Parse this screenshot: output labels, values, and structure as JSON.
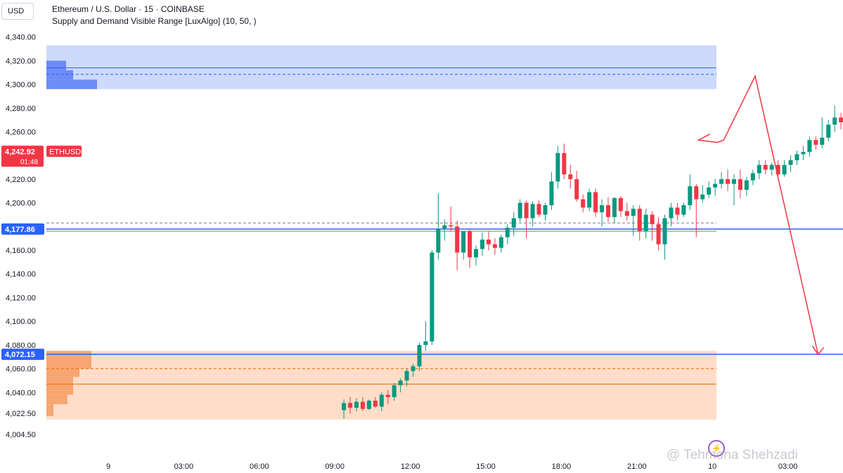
{
  "header": {
    "currency": "USD",
    "symbol_line": "Ethereum / U.S. Dollar · 15 · COINBASE",
    "indicator_line": "Supply and Demand Visible Range [LuxAlgo] (10, 50, )"
  },
  "watermark": {
    "text": "@ Tehmona Shehzadi"
  },
  "chart_data": {
    "type": "candlestick",
    "symbol": "ETHUSD",
    "interval": "15",
    "exchange": "COINBASE",
    "ylim": [
      3995,
      4346
    ],
    "y_ticks": [
      "4,340.00",
      "4,320.00",
      "4,300.00",
      "4,280.00",
      "4,260.00",
      "4,240.00",
      "4,220.00",
      "4,200.00",
      "4,180.00",
      "4,160.00",
      "4,140.00",
      "4,120.00",
      "4,100.00",
      "4,080.00",
      "4,060.00",
      "4,040.00",
      "4,022.50",
      "4,004.50"
    ],
    "x_ticks": [
      {
        "label": "9",
        "hour": 0
      },
      {
        "label": "03:00",
        "hour": 3
      },
      {
        "label": "06:00",
        "hour": 6
      },
      {
        "label": "09:00",
        "hour": 9
      },
      {
        "label": "12:00",
        "hour": 12
      },
      {
        "label": "15:00",
        "hour": 15
      },
      {
        "label": "18:00",
        "hour": 18
      },
      {
        "label": "21:00",
        "hour": 21
      },
      {
        "label": "10",
        "hour": 24
      },
      {
        "label": "03:00",
        "hour": 27
      }
    ],
    "last_price": {
      "symbol_label": "ETHUSD",
      "value": "4,242.92",
      "countdown": "01:48",
      "price": 4242.92
    },
    "levels": [
      {
        "label": "4,177.86",
        "price": 4177.86
      },
      {
        "label": "4,072.15",
        "price": 4072.15
      }
    ],
    "zones": {
      "supply": {
        "top": 4333,
        "bottom": 4296,
        "avg": 4314,
        "mid": 4308.5,
        "color": "#2962ff"
      },
      "demand": {
        "top": 4075,
        "bottom": 4017,
        "avg": 4047,
        "mid": 4060,
        "equilibrium": [
          4183,
          4176
        ],
        "color": "#ff9a57"
      }
    },
    "forecast_path": [
      {
        "hour": 23.9,
        "price": 4258
      },
      {
        "hour": 23.45,
        "price": 4253
      },
      {
        "hour": 24.2,
        "price": 4251
      },
      {
        "hour": 24.45,
        "price": 4253
      },
      {
        "hour": 25.7,
        "price": 4307
      },
      {
        "hour": 28.2,
        "price": 4072
      }
    ],
    "candles": [
      {
        "o": 4025,
        "h": 4034,
        "l": 4018,
        "c": 4031
      },
      {
        "o": 4031,
        "h": 4036,
        "l": 4022,
        "c": 4027
      },
      {
        "o": 4027,
        "h": 4035,
        "l": 4024,
        "c": 4032
      },
      {
        "o": 4032,
        "h": 4036,
        "l": 4024,
        "c": 4026
      },
      {
        "o": 4026,
        "h": 4034,
        "l": 4025,
        "c": 4033
      },
      {
        "o": 4033,
        "h": 4036,
        "l": 4027,
        "c": 4028
      },
      {
        "o": 4028,
        "h": 4040,
        "l": 4024,
        "c": 4038
      },
      {
        "o": 4038,
        "h": 4042,
        "l": 4030,
        "c": 4036
      },
      {
        "o": 4036,
        "h": 4048,
        "l": 4033,
        "c": 4046
      },
      {
        "o": 4046,
        "h": 4052,
        "l": 4040,
        "c": 4050
      },
      {
        "o": 4050,
        "h": 4060,
        "l": 4045,
        "c": 4058
      },
      {
        "o": 4058,
        "h": 4064,
        "l": 4053,
        "c": 4062
      },
      {
        "o": 4062,
        "h": 4082,
        "l": 4058,
        "c": 4080
      },
      {
        "o": 4080,
        "h": 4100,
        "l": 4075,
        "c": 4083
      },
      {
        "o": 4083,
        "h": 4160,
        "l": 4080,
        "c": 4158
      },
      {
        "o": 4158,
        "h": 4208,
        "l": 4152,
        "c": 4178
      },
      {
        "o": 4178,
        "h": 4186,
        "l": 4168,
        "c": 4181
      },
      {
        "o": 4181,
        "h": 4197,
        "l": 4176,
        "c": 4180
      },
      {
        "o": 4180,
        "h": 4185,
        "l": 4143,
        "c": 4158
      },
      {
        "o": 4158,
        "h": 4176,
        "l": 4152,
        "c": 4176
      },
      {
        "o": 4176,
        "h": 4178,
        "l": 4145,
        "c": 4154
      },
      {
        "o": 4154,
        "h": 4164,
        "l": 4147,
        "c": 4161
      },
      {
        "o": 4161,
        "h": 4175,
        "l": 4155,
        "c": 4169
      },
      {
        "o": 4169,
        "h": 4176,
        "l": 4160,
        "c": 4165
      },
      {
        "o": 4165,
        "h": 4170,
        "l": 4156,
        "c": 4162
      },
      {
        "o": 4162,
        "h": 4173,
        "l": 4158,
        "c": 4171
      },
      {
        "o": 4171,
        "h": 4182,
        "l": 4165,
        "c": 4179
      },
      {
        "o": 4179,
        "h": 4192,
        "l": 4172,
        "c": 4187
      },
      {
        "o": 4187,
        "h": 4203,
        "l": 4184,
        "c": 4200
      },
      {
        "o": 4200,
        "h": 4202,
        "l": 4170,
        "c": 4187
      },
      {
        "o": 4187,
        "h": 4201,
        "l": 4180,
        "c": 4199
      },
      {
        "o": 4199,
        "h": 4202,
        "l": 4188,
        "c": 4190
      },
      {
        "o": 4190,
        "h": 4200,
        "l": 4185,
        "c": 4198
      },
      {
        "o": 4198,
        "h": 4226,
        "l": 4194,
        "c": 4218
      },
      {
        "o": 4218,
        "h": 4248,
        "l": 4212,
        "c": 4242
      },
      {
        "o": 4242,
        "h": 4250,
        "l": 4220,
        "c": 4224
      },
      {
        "o": 4224,
        "h": 4232,
        "l": 4212,
        "c": 4220
      },
      {
        "o": 4220,
        "h": 4227,
        "l": 4201,
        "c": 4203
      },
      {
        "o": 4203,
        "h": 4207,
        "l": 4192,
        "c": 4196
      },
      {
        "o": 4196,
        "h": 4212,
        "l": 4193,
        "c": 4209
      },
      {
        "o": 4209,
        "h": 4212,
        "l": 4188,
        "c": 4192
      },
      {
        "o": 4192,
        "h": 4203,
        "l": 4180,
        "c": 4198
      },
      {
        "o": 4198,
        "h": 4205,
        "l": 4184,
        "c": 4188
      },
      {
        "o": 4188,
        "h": 4205,
        "l": 4183,
        "c": 4204
      },
      {
        "o": 4204,
        "h": 4206,
        "l": 4188,
        "c": 4193
      },
      {
        "o": 4193,
        "h": 4200,
        "l": 4185,
        "c": 4189
      },
      {
        "o": 4189,
        "h": 4198,
        "l": 4172,
        "c": 4195
      },
      {
        "o": 4195,
        "h": 4198,
        "l": 4168,
        "c": 4176
      },
      {
        "o": 4176,
        "h": 4195,
        "l": 4170,
        "c": 4190
      },
      {
        "o": 4190,
        "h": 4193,
        "l": 4168,
        "c": 4182
      },
      {
        "o": 4182,
        "h": 4188,
        "l": 4160,
        "c": 4165
      },
      {
        "o": 4165,
        "h": 4190,
        "l": 4152,
        "c": 4187
      },
      {
        "o": 4187,
        "h": 4200,
        "l": 4180,
        "c": 4196
      },
      {
        "o": 4196,
        "h": 4200,
        "l": 4185,
        "c": 4190
      },
      {
        "o": 4190,
        "h": 4200,
        "l": 4188,
        "c": 4198
      },
      {
        "o": 4198,
        "h": 4224,
        "l": 4194,
        "c": 4214
      },
      {
        "o": 4214,
        "h": 4216,
        "l": 4171,
        "c": 4203
      },
      {
        "o": 4203,
        "h": 4215,
        "l": 4200,
        "c": 4207
      },
      {
        "o": 4207,
        "h": 4218,
        "l": 4204,
        "c": 4213
      },
      {
        "o": 4213,
        "h": 4220,
        "l": 4206,
        "c": 4216
      },
      {
        "o": 4216,
        "h": 4226,
        "l": 4212,
        "c": 4220
      },
      {
        "o": 4220,
        "h": 4228,
        "l": 4210,
        "c": 4216
      },
      {
        "o": 4216,
        "h": 4224,
        "l": 4198,
        "c": 4220
      },
      {
        "o": 4220,
        "h": 4228,
        "l": 4204,
        "c": 4211
      },
      {
        "o": 4211,
        "h": 4222,
        "l": 4206,
        "c": 4219
      },
      {
        "o": 4219,
        "h": 4228,
        "l": 4215,
        "c": 4225
      },
      {
        "o": 4225,
        "h": 4236,
        "l": 4220,
        "c": 4232
      },
      {
        "o": 4232,
        "h": 4236,
        "l": 4224,
        "c": 4228
      },
      {
        "o": 4228,
        "h": 4234,
        "l": 4223,
        "c": 4232
      },
      {
        "o": 4232,
        "h": 4236,
        "l": 4222,
        "c": 4224
      },
      {
        "o": 4224,
        "h": 4236,
        "l": 4222,
        "c": 4232
      },
      {
        "o": 4232,
        "h": 4240,
        "l": 4226,
        "c": 4236
      },
      {
        "o": 4236,
        "h": 4244,
        "l": 4232,
        "c": 4241
      },
      {
        "o": 4241,
        "h": 4248,
        "l": 4236,
        "c": 4243
      },
      {
        "o": 4243,
        "h": 4256,
        "l": 4239,
        "c": 4253
      },
      {
        "o": 4253,
        "h": 4256,
        "l": 4245,
        "c": 4249
      },
      {
        "o": 4249,
        "h": 4272,
        "l": 4246,
        "c": 4255
      },
      {
        "o": 4255,
        "h": 4270,
        "l": 4252,
        "c": 4266
      },
      {
        "o": 4266,
        "h": 4282,
        "l": 4260,
        "c": 4272
      },
      {
        "o": 4272,
        "h": 4276,
        "l": 4262,
        "c": 4268
      },
      {
        "o": 4268,
        "h": 4294,
        "l": 4264,
        "c": 4284
      },
      {
        "o": 4284,
        "h": 4300,
        "l": 4278,
        "c": 4280
      },
      {
        "o": 4280,
        "h": 4284,
        "l": 4262,
        "c": 4264
      },
      {
        "o": 4264,
        "h": 4276,
        "l": 4260,
        "c": 4272
      },
      {
        "o": 4272,
        "h": 4284,
        "l": 4266,
        "c": 4277
      },
      {
        "o": 4277,
        "h": 4296,
        "l": 4272,
        "c": 4284
      },
      {
        "o": 4284,
        "h": 4310,
        "l": 4280,
        "c": 4304
      },
      {
        "o": 4304,
        "h": 4326,
        "l": 4290,
        "c": 4288
      },
      {
        "o": 4288,
        "h": 4310,
        "l": 4270,
        "c": 4272
      },
      {
        "o": 4272,
        "h": 4280,
        "l": 4246,
        "c": 4265
      },
      {
        "o": 4265,
        "h": 4274,
        "l": 4250,
        "c": 4258
      },
      {
        "o": 4258,
        "h": 4268,
        "l": 4250,
        "c": 4254
      },
      {
        "o": 4254,
        "h": 4266,
        "l": 4250,
        "c": 4264
      },
      {
        "o": 4264,
        "h": 4272,
        "l": 4252,
        "c": 4258
      },
      {
        "o": 4258,
        "h": 4270,
        "l": 4246,
        "c": 4266
      },
      {
        "o": 4266,
        "h": 4272,
        "l": 4262,
        "c": 4268
      },
      {
        "o": 4268,
        "h": 4280,
        "l": 4263,
        "c": 4266
      },
      {
        "o": 4266,
        "h": 4290,
        "l": 4262,
        "c": 4288
      },
      {
        "o": 4288,
        "h": 4332,
        "l": 4284,
        "c": 4312
      },
      {
        "o": 4312,
        "h": 4318,
        "l": 4288,
        "c": 4293
      },
      {
        "o": 4293,
        "h": 4310,
        "l": 4289,
        "c": 4300
      },
      {
        "o": 4300,
        "h": 4320,
        "l": 4295,
        "c": 4318
      },
      {
        "o": 4318,
        "h": 4322,
        "l": 4296,
        "c": 4300
      },
      {
        "o": 4300,
        "h": 4304,
        "l": 4280,
        "c": 4285
      },
      {
        "o": 4285,
        "h": 4292,
        "l": 4256,
        "c": 4266
      },
      {
        "o": 4266,
        "h": 4270,
        "l": 4248,
        "c": 4253
      },
      {
        "o": 4253,
        "h": 4258,
        "l": 4245,
        "c": 4249
      },
      {
        "o": 4249,
        "h": 4256,
        "l": 4240,
        "c": 4247
      },
      {
        "o": 4247,
        "h": 4250,
        "l": 4206,
        "c": 4236
      },
      {
        "o": 4236,
        "h": 4246,
        "l": 4218,
        "c": 4240
      },
      {
        "o": 4240,
        "h": 4250,
        "l": 4226,
        "c": 4243
      }
    ]
  }
}
